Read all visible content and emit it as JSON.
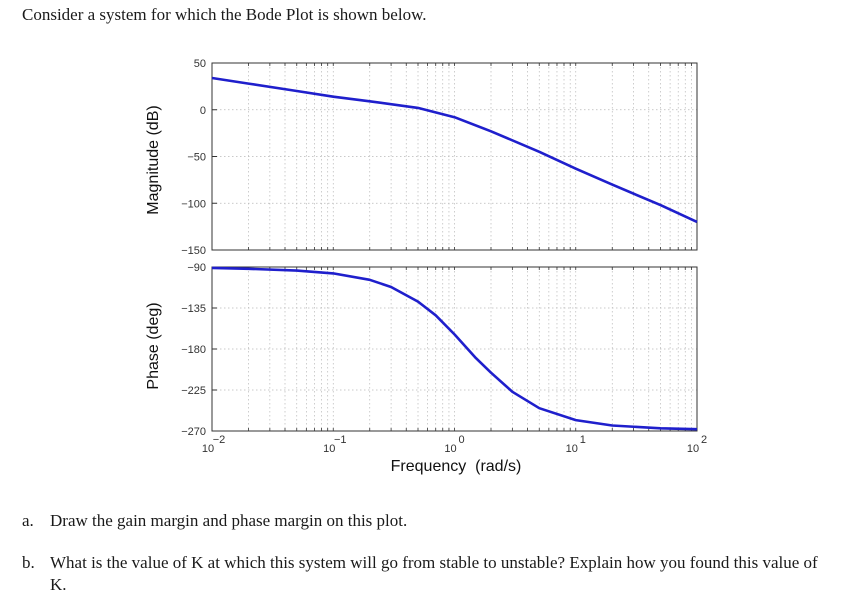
{
  "intro": "Consider a system for which the Bode Plot is shown below.",
  "questions": [
    {
      "letter": "a.",
      "text": "Draw the gain margin and phase margin on this plot."
    },
    {
      "letter": "b.",
      "text": "What is the value of K at which this system will go from stable to unstable? Explain how you found this value of K."
    }
  ],
  "colors": {
    "curve": "#1f1fcc",
    "axes": "#333333",
    "grid": "#b8b8b8"
  },
  "chart_data": [
    {
      "type": "line",
      "panel": "magnitude",
      "ylabel": "Magnitude (dB)",
      "xlabel": "",
      "xscale": "log",
      "xlim": [
        0.01,
        100
      ],
      "ylim": [
        -150,
        50
      ],
      "yticks": [
        "50",
        "0",
        "−50",
        "−100",
        "−150"
      ],
      "ytick_values": [
        50,
        0,
        -50,
        -100,
        -150
      ],
      "grid": true,
      "x": [
        0.01,
        0.02,
        0.05,
        0.1,
        0.2,
        0.5,
        1,
        2,
        5,
        10,
        20,
        50,
        100
      ],
      "y": [
        34,
        28,
        20,
        14,
        9,
        2,
        -8,
        -23,
        -45,
        -63,
        -80,
        -102,
        -120
      ]
    },
    {
      "type": "line",
      "panel": "phase",
      "ylabel": "Phase (deg)",
      "xlabel": "Frequency  (rad/s)",
      "xscale": "log",
      "xlim": [
        0.01,
        100
      ],
      "ylim": [
        -270,
        -90
      ],
      "yticks": [
        "−90",
        "−135",
        "−180",
        "−225",
        "−270"
      ],
      "ytick_values": [
        -90,
        -135,
        -180,
        -225,
        -270
      ],
      "xticks": [
        {
          "base": "10",
          "exp": "−2",
          "value": 0.01
        },
        {
          "base": "10",
          "exp": "−1",
          "value": 0.1
        },
        {
          "base": "10",
          "exp": "0",
          "value": 1
        },
        {
          "base": "10",
          "exp": "1",
          "value": 10
        },
        {
          "base": "10",
          "exp": "2",
          "value": 100
        }
      ],
      "grid": true,
      "x": [
        0.01,
        0.02,
        0.05,
        0.1,
        0.2,
        0.3,
        0.5,
        0.7,
        1,
        1.5,
        2,
        3,
        5,
        10,
        20,
        50,
        100
      ],
      "y": [
        -91,
        -92,
        -94,
        -97,
        -104,
        -112,
        -128,
        -143,
        -164,
        -190,
        -206,
        -227,
        -245,
        -258,
        -264,
        -267,
        -268
      ]
    }
  ]
}
